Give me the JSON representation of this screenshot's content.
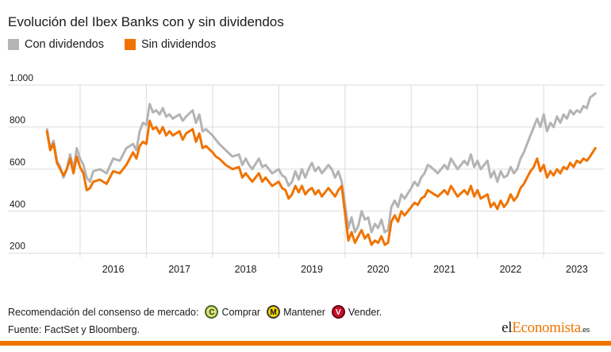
{
  "title": "Evolución del Ibex Banks con y sin dividendos",
  "legend": [
    {
      "label": "Con dividendos",
      "color": "#b4b4b4"
    },
    {
      "label": "Sin dividendos",
      "color": "#f07300"
    }
  ],
  "recommendation": {
    "label": "Recomendación del consenso de mercado:",
    "items": [
      {
        "symbol": "C",
        "label": "Comprar"
      },
      {
        "symbol": "M",
        "label": "Mantener"
      },
      {
        "symbol": "V",
        "label": "Vender."
      }
    ]
  },
  "source": "Fuente: FactSet y Bloomberg.",
  "logo": {
    "part1": "el",
    "part2": "Economista",
    "part3": ".es"
  },
  "chart_data": {
    "type": "line",
    "title": "Evolución del Ibex Banks con y sin dividendos",
    "y_ticks": [
      200,
      400,
      600,
      800,
      1000
    ],
    "y_tick_labels": [
      "200",
      "400",
      "600",
      "800",
      "1.000"
    ],
    "ylim": [
      180,
      1000
    ],
    "xlim": [
      2015.45,
      2023.92
    ],
    "x_tick_labels": [
      "2016",
      "2017",
      "2018",
      "2019",
      "2020",
      "2021",
      "2022",
      "2023"
    ],
    "x_tick_positions": [
      2016.5,
      2017.5,
      2018.5,
      2019.5,
      2020.5,
      2021.5,
      2022.5,
      2023.5
    ],
    "vertical_gridlines": [
      2016,
      2017,
      2018,
      2019,
      2020,
      2021,
      2022,
      2023
    ],
    "grid": true,
    "legend_position": "top-left",
    "series": [
      {
        "name": "Con dividendos",
        "color": "#b4b4b4",
        "points": [
          [
            2015.5,
            790
          ],
          [
            2015.55,
            700
          ],
          [
            2015.6,
            735
          ],
          [
            2015.65,
            640
          ],
          [
            2015.7,
            610
          ],
          [
            2015.75,
            560
          ],
          [
            2015.8,
            600
          ],
          [
            2015.85,
            670
          ],
          [
            2015.9,
            600
          ],
          [
            2015.95,
            700
          ],
          [
            2016.0,
            650
          ],
          [
            2016.05,
            620
          ],
          [
            2016.1,
            560
          ],
          [
            2016.15,
            540
          ],
          [
            2016.2,
            590
          ],
          [
            2016.3,
            600
          ],
          [
            2016.4,
            580
          ],
          [
            2016.5,
            650
          ],
          [
            2016.6,
            640
          ],
          [
            2016.7,
            700
          ],
          [
            2016.8,
            720
          ],
          [
            2016.85,
            690
          ],
          [
            2016.9,
            780
          ],
          [
            2016.95,
            820
          ],
          [
            2017.0,
            810
          ],
          [
            2017.05,
            910
          ],
          [
            2017.1,
            870
          ],
          [
            2017.15,
            880
          ],
          [
            2017.2,
            860
          ],
          [
            2017.25,
            890
          ],
          [
            2017.3,
            850
          ],
          [
            2017.35,
            860
          ],
          [
            2017.4,
            840
          ],
          [
            2017.5,
            860
          ],
          [
            2017.55,
            830
          ],
          [
            2017.6,
            850
          ],
          [
            2017.7,
            880
          ],
          [
            2017.75,
            820
          ],
          [
            2017.8,
            860
          ],
          [
            2017.85,
            780
          ],
          [
            2017.9,
            790
          ],
          [
            2018.0,
            760
          ],
          [
            2018.05,
            740
          ],
          [
            2018.1,
            720
          ],
          [
            2018.2,
            690
          ],
          [
            2018.3,
            660
          ],
          [
            2018.4,
            670
          ],
          [
            2018.45,
            620
          ],
          [
            2018.5,
            650
          ],
          [
            2018.55,
            620
          ],
          [
            2018.6,
            600
          ],
          [
            2018.7,
            650
          ],
          [
            2018.75,
            610
          ],
          [
            2018.8,
            620
          ],
          [
            2018.9,
            580
          ],
          [
            2019.0,
            600
          ],
          [
            2019.05,
            570
          ],
          [
            2019.1,
            560
          ],
          [
            2019.15,
            520
          ],
          [
            2019.2,
            540
          ],
          [
            2019.25,
            590
          ],
          [
            2019.3,
            550
          ],
          [
            2019.35,
            600
          ],
          [
            2019.4,
            560
          ],
          [
            2019.45,
            600
          ],
          [
            2019.5,
            630
          ],
          [
            2019.55,
            590
          ],
          [
            2019.6,
            610
          ],
          [
            2019.65,
            580
          ],
          [
            2019.7,
            600
          ],
          [
            2019.75,
            620
          ],
          [
            2019.8,
            600
          ],
          [
            2019.85,
            560
          ],
          [
            2019.9,
            590
          ],
          [
            2019.95,
            540
          ],
          [
            2020.05,
            320
          ],
          [
            2020.1,
            370
          ],
          [
            2020.15,
            300
          ],
          [
            2020.2,
            330
          ],
          [
            2020.25,
            400
          ],
          [
            2020.3,
            360
          ],
          [
            2020.35,
            370
          ],
          [
            2020.4,
            300
          ],
          [
            2020.45,
            340
          ],
          [
            2020.5,
            320
          ],
          [
            2020.55,
            360
          ],
          [
            2020.6,
            300
          ],
          [
            2020.65,
            310
          ],
          [
            2020.7,
            420
          ],
          [
            2020.75,
            450
          ],
          [
            2020.8,
            420
          ],
          [
            2020.85,
            480
          ],
          [
            2020.9,
            460
          ],
          [
            2021.0,
            510
          ],
          [
            2021.05,
            540
          ],
          [
            2021.1,
            520
          ],
          [
            2021.15,
            560
          ],
          [
            2021.2,
            580
          ],
          [
            2021.25,
            620
          ],
          [
            2021.3,
            610
          ],
          [
            2021.4,
            580
          ],
          [
            2021.5,
            620
          ],
          [
            2021.55,
            600
          ],
          [
            2021.6,
            650
          ],
          [
            2021.7,
            600
          ],
          [
            2021.8,
            640
          ],
          [
            2021.85,
            620
          ],
          [
            2021.9,
            670
          ],
          [
            2021.95,
            610
          ],
          [
            2022.0,
            640
          ],
          [
            2022.05,
            600
          ],
          [
            2022.1,
            620
          ],
          [
            2022.15,
            640
          ],
          [
            2022.2,
            560
          ],
          [
            2022.25,
            590
          ],
          [
            2022.3,
            540
          ],
          [
            2022.35,
            590
          ],
          [
            2022.4,
            560
          ],
          [
            2022.45,
            570
          ],
          [
            2022.5,
            610
          ],
          [
            2022.55,
            580
          ],
          [
            2022.6,
            600
          ],
          [
            2022.65,
            650
          ],
          [
            2022.7,
            680
          ],
          [
            2022.75,
            720
          ],
          [
            2022.8,
            760
          ],
          [
            2022.85,
            800
          ],
          [
            2022.9,
            840
          ],
          [
            2022.95,
            800
          ],
          [
            2023.0,
            860
          ],
          [
            2023.05,
            780
          ],
          [
            2023.1,
            820
          ],
          [
            2023.15,
            800
          ],
          [
            2023.2,
            850
          ],
          [
            2023.25,
            820
          ],
          [
            2023.3,
            860
          ],
          [
            2023.35,
            840
          ],
          [
            2023.4,
            880
          ],
          [
            2023.45,
            860
          ],
          [
            2023.5,
            880
          ],
          [
            2023.55,
            870
          ],
          [
            2023.6,
            900
          ],
          [
            2023.65,
            890
          ],
          [
            2023.7,
            940
          ],
          [
            2023.78,
            960
          ]
        ]
      },
      {
        "name": "Sin dividendos",
        "color": "#f07300",
        "points": [
          [
            2015.5,
            780
          ],
          [
            2015.55,
            690
          ],
          [
            2015.6,
            720
          ],
          [
            2015.65,
            630
          ],
          [
            2015.7,
            600
          ],
          [
            2015.75,
            570
          ],
          [
            2015.8,
            600
          ],
          [
            2015.85,
            650
          ],
          [
            2015.9,
            580
          ],
          [
            2015.95,
            660
          ],
          [
            2016.0,
            610
          ],
          [
            2016.05,
            580
          ],
          [
            2016.1,
            500
          ],
          [
            2016.15,
            510
          ],
          [
            2016.2,
            540
          ],
          [
            2016.3,
            550
          ],
          [
            2016.4,
            530
          ],
          [
            2016.5,
            590
          ],
          [
            2016.6,
            580
          ],
          [
            2016.7,
            620
          ],
          [
            2016.8,
            680
          ],
          [
            2016.85,
            650
          ],
          [
            2016.9,
            710
          ],
          [
            2016.95,
            730
          ],
          [
            2017.0,
            720
          ],
          [
            2017.05,
            830
          ],
          [
            2017.1,
            790
          ],
          [
            2017.15,
            800
          ],
          [
            2017.2,
            770
          ],
          [
            2017.25,
            800
          ],
          [
            2017.3,
            760
          ],
          [
            2017.35,
            780
          ],
          [
            2017.4,
            760
          ],
          [
            2017.5,
            780
          ],
          [
            2017.55,
            740
          ],
          [
            2017.6,
            770
          ],
          [
            2017.7,
            790
          ],
          [
            2017.75,
            730
          ],
          [
            2017.8,
            770
          ],
          [
            2017.85,
            700
          ],
          [
            2017.9,
            710
          ],
          [
            2018.0,
            680
          ],
          [
            2018.05,
            660
          ],
          [
            2018.1,
            650
          ],
          [
            2018.2,
            620
          ],
          [
            2018.3,
            600
          ],
          [
            2018.4,
            610
          ],
          [
            2018.45,
            560
          ],
          [
            2018.5,
            580
          ],
          [
            2018.55,
            560
          ],
          [
            2018.6,
            540
          ],
          [
            2018.7,
            580
          ],
          [
            2018.75,
            540
          ],
          [
            2018.8,
            560
          ],
          [
            2018.9,
            520
          ],
          [
            2019.0,
            540
          ],
          [
            2019.05,
            510
          ],
          [
            2019.1,
            500
          ],
          [
            2019.15,
            460
          ],
          [
            2019.2,
            480
          ],
          [
            2019.25,
            520
          ],
          [
            2019.3,
            490
          ],
          [
            2019.35,
            520
          ],
          [
            2019.4,
            480
          ],
          [
            2019.45,
            500
          ],
          [
            2019.5,
            510
          ],
          [
            2019.55,
            480
          ],
          [
            2019.6,
            500
          ],
          [
            2019.65,
            470
          ],
          [
            2019.7,
            490
          ],
          [
            2019.75,
            510
          ],
          [
            2019.8,
            490
          ],
          [
            2019.85,
            470
          ],
          [
            2019.9,
            500
          ],
          [
            2019.95,
            520
          ],
          [
            2020.05,
            260
          ],
          [
            2020.1,
            300
          ],
          [
            2020.15,
            250
          ],
          [
            2020.2,
            280
          ],
          [
            2020.25,
            310
          ],
          [
            2020.3,
            270
          ],
          [
            2020.35,
            290
          ],
          [
            2020.4,
            240
          ],
          [
            2020.45,
            260
          ],
          [
            2020.5,
            250
          ],
          [
            2020.55,
            280
          ],
          [
            2020.6,
            240
          ],
          [
            2020.65,
            250
          ],
          [
            2020.7,
            350
          ],
          [
            2020.75,
            380
          ],
          [
            2020.8,
            350
          ],
          [
            2020.85,
            400
          ],
          [
            2020.9,
            380
          ],
          [
            2021.0,
            420
          ],
          [
            2021.05,
            440
          ],
          [
            2021.1,
            430
          ],
          [
            2021.15,
            460
          ],
          [
            2021.2,
            470
          ],
          [
            2021.25,
            500
          ],
          [
            2021.3,
            490
          ],
          [
            2021.4,
            470
          ],
          [
            2021.5,
            500
          ],
          [
            2021.55,
            480
          ],
          [
            2021.6,
            520
          ],
          [
            2021.7,
            470
          ],
          [
            2021.8,
            500
          ],
          [
            2021.85,
            480
          ],
          [
            2021.9,
            520
          ],
          [
            2021.95,
            470
          ],
          [
            2022.0,
            500
          ],
          [
            2022.05,
            460
          ],
          [
            2022.1,
            470
          ],
          [
            2022.15,
            480
          ],
          [
            2022.2,
            420
          ],
          [
            2022.25,
            440
          ],
          [
            2022.3,
            410
          ],
          [
            2022.35,
            450
          ],
          [
            2022.4,
            420
          ],
          [
            2022.45,
            440
          ],
          [
            2022.5,
            480
          ],
          [
            2022.55,
            450
          ],
          [
            2022.6,
            470
          ],
          [
            2022.65,
            510
          ],
          [
            2022.7,
            530
          ],
          [
            2022.75,
            560
          ],
          [
            2022.8,
            590
          ],
          [
            2022.85,
            610
          ],
          [
            2022.9,
            650
          ],
          [
            2022.95,
            590
          ],
          [
            2023.0,
            620
          ],
          [
            2023.05,
            560
          ],
          [
            2023.1,
            590
          ],
          [
            2023.15,
            570
          ],
          [
            2023.2,
            600
          ],
          [
            2023.25,
            580
          ],
          [
            2023.3,
            610
          ],
          [
            2023.35,
            600
          ],
          [
            2023.4,
            630
          ],
          [
            2023.45,
            610
          ],
          [
            2023.5,
            640
          ],
          [
            2023.55,
            630
          ],
          [
            2023.6,
            650
          ],
          [
            2023.65,
            640
          ],
          [
            2023.7,
            660
          ],
          [
            2023.78,
            700
          ]
        ]
      }
    ]
  }
}
